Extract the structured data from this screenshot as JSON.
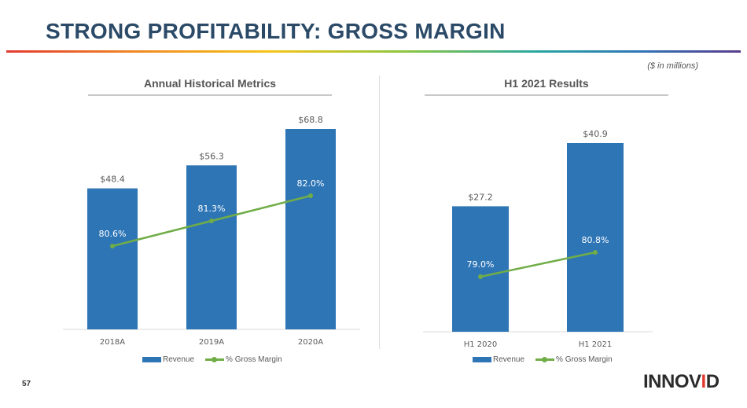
{
  "page": {
    "title": "STRONG PROFITABILITY: GROSS MARGIN",
    "units_note": "($ in millions)",
    "page_number": "57",
    "logo_text_a": "INNOV",
    "logo_text_b": "I",
    "logo_text_c": "D"
  },
  "colors": {
    "bar": "#2e75b6",
    "line": "#70ad47",
    "title": "#2b4a68",
    "label": "#595959"
  },
  "chart_data": [
    {
      "type": "bar",
      "title": "Annual Historical Metrics",
      "categories": [
        "2018A",
        "2019A",
        "2020A"
      ],
      "series": [
        {
          "name": "Revenue",
          "type": "bar",
          "values": [
            48.4,
            56.3,
            68.8
          ],
          "labels": [
            "$48.4",
            "$56.3",
            "$68.8"
          ]
        },
        {
          "name": "% Gross Margin",
          "type": "line",
          "values": [
            80.6,
            81.3,
            82.0
          ],
          "labels": [
            "80.6%",
            "81.3%",
            "82.0%"
          ]
        }
      ],
      "legend": [
        "Revenue",
        "% Gross Margin"
      ],
      "legend_position": "bottom"
    },
    {
      "type": "bar",
      "title": "H1 2021 Results",
      "categories": [
        "H1 2020",
        "H1 2021"
      ],
      "series": [
        {
          "name": "Revenue",
          "type": "bar",
          "values": [
            27.2,
            40.9
          ],
          "labels": [
            "$27.2",
            "$40.9"
          ]
        },
        {
          "name": "% Gross Margin",
          "type": "line",
          "values": [
            79.0,
            80.8
          ],
          "labels": [
            "79.0%",
            "80.8%"
          ]
        }
      ],
      "legend": [
        "Revenue",
        "% Gross Margin"
      ],
      "legend_position": "bottom"
    }
  ]
}
